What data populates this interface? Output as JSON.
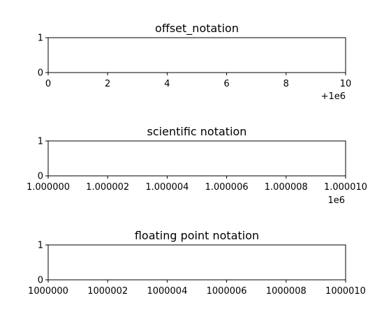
{
  "chart_data": [
    {
      "type": "line",
      "title": "offset_notation",
      "xlabel": "",
      "ylabel": "",
      "xlim": [
        1000000,
        1000010
      ],
      "ylim": [
        0,
        1
      ],
      "x_ticks": [
        1000000,
        1000002,
        1000004,
        1000006,
        1000008,
        1000010
      ],
      "x_tick_labels": [
        "0",
        "2",
        "4",
        "6",
        "8",
        "10"
      ],
      "x_offset_label": "+1e6",
      "y_ticks": [
        0,
        1
      ],
      "y_tick_labels": [
        "0",
        "1"
      ],
      "grid": false,
      "series": []
    },
    {
      "type": "line",
      "title": "scientific notation",
      "xlabel": "",
      "ylabel": "",
      "xlim": [
        1000000,
        1000010
      ],
      "ylim": [
        0,
        1
      ],
      "x_ticks": [
        1000000,
        1000002,
        1000004,
        1000006,
        1000008,
        1000010
      ],
      "x_tick_labels": [
        "1.000000",
        "1.000002",
        "1.000004",
        "1.000006",
        "1.000008",
        "1.000010"
      ],
      "x_offset_label": "1e6",
      "y_ticks": [
        0,
        1
      ],
      "y_tick_labels": [
        "0",
        "1"
      ],
      "grid": false,
      "series": []
    },
    {
      "type": "line",
      "title": "floating point notation",
      "xlabel": "",
      "ylabel": "",
      "xlim": [
        1000000,
        1000010
      ],
      "ylim": [
        0,
        1
      ],
      "x_ticks": [
        1000000,
        1000002,
        1000004,
        1000006,
        1000008,
        1000010
      ],
      "x_tick_labels": [
        "1000000",
        "1000002",
        "1000004",
        "1000006",
        "1000008",
        "1000010"
      ],
      "x_offset_label": "",
      "y_ticks": [
        0,
        1
      ],
      "y_tick_labels": [
        "0",
        "1"
      ],
      "grid": false,
      "series": []
    }
  ]
}
